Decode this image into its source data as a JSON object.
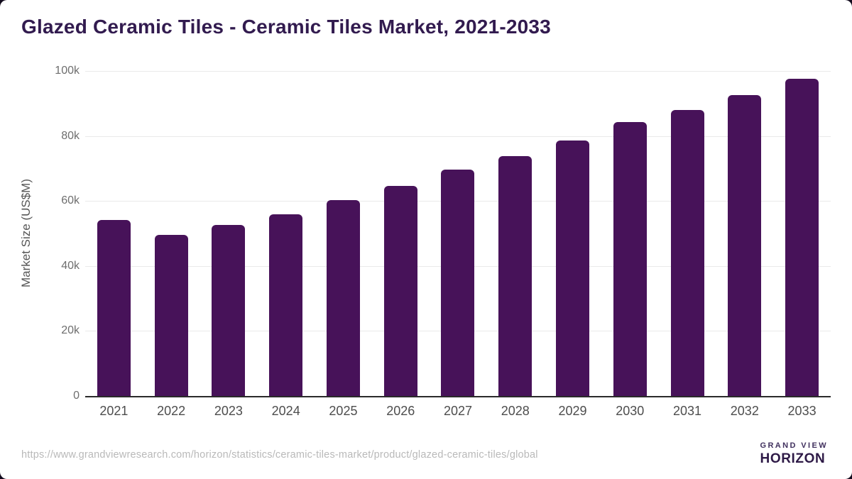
{
  "title": "Glazed Ceramic Tiles - Ceramic Tiles Market, 2021-2033",
  "chart_data": {
    "type": "bar",
    "categories": [
      "2021",
      "2022",
      "2023",
      "2024",
      "2025",
      "2026",
      "2027",
      "2028",
      "2029",
      "2030",
      "2031",
      "2032",
      "2033"
    ],
    "values": [
      54100,
      49500,
      52600,
      55900,
      60200,
      64600,
      69600,
      73900,
      78500,
      84300,
      88100,
      92600,
      97500
    ],
    "title": "Glazed Ceramic Tiles - Ceramic Tiles Market, 2021-2033",
    "xlabel": "",
    "ylabel": "Market Size (US$M)",
    "ylim": [
      0,
      100000
    ],
    "yticks": [
      {
        "value": 0,
        "label": "0"
      },
      {
        "value": 20000,
        "label": "20k"
      },
      {
        "value": 40000,
        "label": "40k"
      },
      {
        "value": 60000,
        "label": "60k"
      },
      {
        "value": 80000,
        "label": "80k"
      },
      {
        "value": 100000,
        "label": "100k"
      }
    ],
    "grid": true,
    "legend": false,
    "bar_color": "#471259"
  },
  "colors": {
    "title": "#321b4f",
    "bar": "#471259",
    "gridline": "#eaeaea",
    "axis_line": "#2a2a2a",
    "tick_label": "#6e6e6e",
    "x_label": "#4d4d4d",
    "url": "#b9b9b9",
    "logo_purple": "#2e1a47",
    "logo_blue": "#5bc2f1",
    "page_backdrop": "#120b1d"
  },
  "footer": {
    "source_url": "https://www.grandviewresearch.com/horizon/statistics/ceramic-tiles-market/product/glazed-ceramic-tiles/global",
    "logo_top": "GRAND VIEW",
    "logo_bottom": "HORIZON"
  }
}
